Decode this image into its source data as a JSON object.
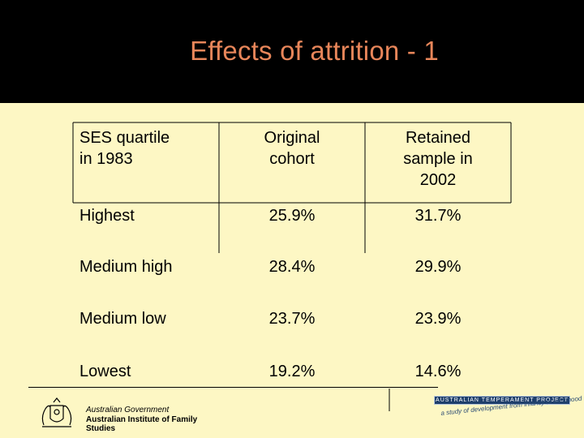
{
  "slide": {
    "title": "Effects of attrition - 1"
  },
  "table": {
    "headers": {
      "col0": [
        "SES quartile",
        "in 1983"
      ],
      "col1": [
        "Original",
        "cohort"
      ],
      "col2": [
        "Retained",
        "sample in",
        "2002"
      ]
    },
    "rows": [
      {
        "label": "Highest",
        "original": "25.9%",
        "retained": "31.7%"
      },
      {
        "label": "Medium high",
        "original": "28.4%",
        "retained": "29.9%"
      },
      {
        "label": "Medium low",
        "original": "23.7%",
        "retained": "23.9%"
      },
      {
        "label": "Lowest",
        "original": "19.2%",
        "retained": "14.6%"
      }
    ]
  },
  "footer": {
    "left_logo": {
      "line1": "Australian Government",
      "line2": "Australian Institute of Family Studies"
    },
    "right_logo": {
      "banner": "AUSTRALIAN TEMPERAMENT PROJECT",
      "tagline": "a study of development from infancy to adulthood"
    }
  },
  "colors": {
    "title": "#e8865a",
    "header_bg": "#000000",
    "content_bg": "#fdf7c4"
  }
}
